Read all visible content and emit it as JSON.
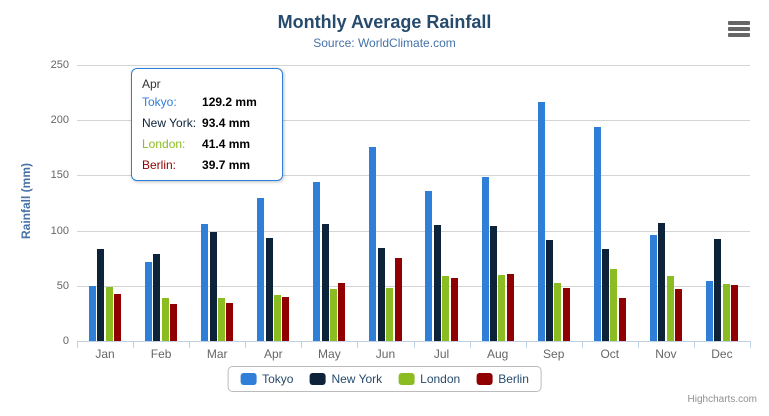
{
  "chart": {
    "title": "Monthly Average Rainfall",
    "subtitle": "Source: WorldClimate.com",
    "credits": "Highcharts.com"
  },
  "chart_data": {
    "type": "bar",
    "title": "Monthly Average Rainfall",
    "subtitle": "Source: WorldClimate.com",
    "categories": [
      "Jan",
      "Feb",
      "Mar",
      "Apr",
      "May",
      "Jun",
      "Jul",
      "Aug",
      "Sep",
      "Oct",
      "Nov",
      "Dec"
    ],
    "series": [
      {
        "name": "Tokyo",
        "color": "#2f7ed8",
        "values": [
          49.9,
          71.5,
          106.4,
          129.2,
          144.0,
          176.0,
          135.6,
          148.5,
          216.4,
          194.1,
          95.6,
          54.4
        ]
      },
      {
        "name": "New York",
        "color": "#0d233a",
        "values": [
          83.6,
          78.8,
          98.5,
          93.4,
          106.0,
          84.5,
          105.0,
          104.3,
          91.2,
          83.5,
          106.6,
          92.3
        ]
      },
      {
        "name": "London",
        "color": "#8bbc21",
        "values": [
          48.9,
          38.8,
          39.3,
          41.4,
          47.0,
          48.3,
          59.0,
          59.6,
          52.4,
          65.2,
          59.3,
          51.2
        ]
      },
      {
        "name": "Berlin",
        "color": "#910000",
        "values": [
          42.4,
          33.2,
          34.5,
          39.7,
          52.6,
          75.5,
          57.4,
          60.4,
          47.6,
          39.1,
          46.8,
          51.1
        ]
      }
    ],
    "xlabel": "",
    "ylabel": "Rainfall (mm)",
    "ylim": [
      0,
      250
    ],
    "yticks": [
      0,
      50,
      100,
      150,
      200,
      250
    ],
    "grid": true,
    "legend_position": "bottom"
  },
  "tooltip": {
    "header": "Apr",
    "border_color": "#2f7ed8",
    "rows": [
      {
        "series": "Tokyo",
        "label": "Tokyo:",
        "value": "129.2 mm"
      },
      {
        "series": "New York",
        "label": "New York:",
        "value": "93.4 mm"
      },
      {
        "series": "London",
        "label": "London:",
        "value": "41.4 mm"
      },
      {
        "series": "Berlin",
        "label": "Berlin:",
        "value": "39.7 mm"
      }
    ]
  }
}
